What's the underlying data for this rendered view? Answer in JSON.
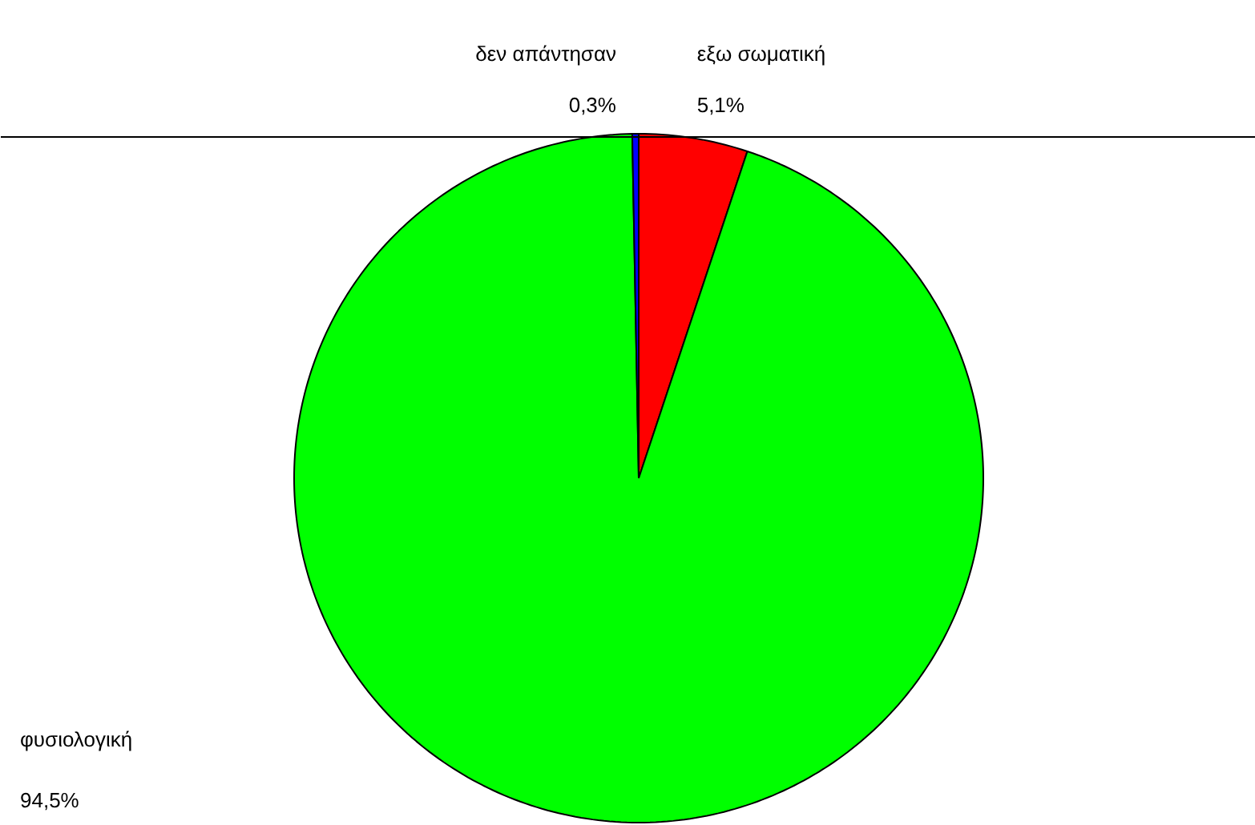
{
  "chart_data": {
    "type": "pie",
    "categories": [
      "εξω σωματική",
      "φυσιολογική",
      "δεν απάντησαν"
    ],
    "values": [
      5.1,
      94.5,
      0.3
    ],
    "colors": [
      "#ff0000",
      "#00ff00",
      "#0000ff"
    ],
    "value_labels": [
      "5,1%",
      "94,5%",
      "0,3%"
    ]
  }
}
